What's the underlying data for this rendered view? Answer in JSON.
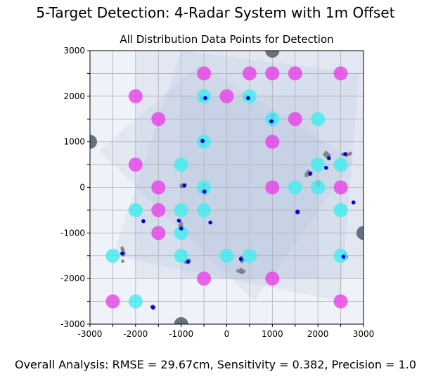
{
  "figure_title": "5-Target Detection: 4-Radar System with 1m Offset",
  "footer": "Overall Analysis: RMSE = 29.67cm, Sensitivity = 0.382, Precision = 1.0",
  "colors": {
    "background": "#ffffff",
    "coverage_fill": "#b0c0dc",
    "grid": "#b0b0b0",
    "radar": "#5f6b78",
    "magenta": "#e840e8",
    "cyan": "#40eef0",
    "detection_cloud": "#808080",
    "detection_center": "#0000e0"
  },
  "chart_data": {
    "type": "scatter",
    "title": "All Distribution Data Points for Detection",
    "xlabel": "",
    "ylabel": "",
    "xlim": [
      -3000,
      3000
    ],
    "ylim": [
      -3000,
      3000
    ],
    "grid": true,
    "x_ticks": [
      -3000,
      -2500,
      -2000,
      -1500,
      -1000,
      -500,
      0,
      500,
      1000,
      1500,
      2000,
      2500,
      3000
    ],
    "y_ticks": [
      -3000,
      -2500,
      -2000,
      -1500,
      -1000,
      -500,
      0,
      500,
      1000,
      1500,
      2000,
      2500,
      3000
    ],
    "x_tick_labels": [
      "-3000",
      "",
      "-2000",
      "",
      "-1000",
      "",
      "0",
      "",
      "1000",
      "",
      "2000",
      "",
      "3000"
    ],
    "y_tick_labels": [
      "-3000",
      "",
      "-2000",
      "",
      "-1000",
      "",
      "0",
      "",
      "1000",
      "",
      "2000",
      "",
      "3000"
    ],
    "coverage_regions": [
      [
        [
          -3000,
          3000
        ],
        [
          3000,
          3000
        ],
        [
          3000,
          -3000
        ],
        [
          -3000,
          -3000
        ]
      ],
      [
        [
          -2000,
          3000
        ],
        [
          3000,
          3000
        ],
        [
          3000,
          -2000
        ],
        [
          -2000,
          -2000
        ]
      ],
      [
        [
          -1000,
          3000
        ],
        [
          2900,
          2500
        ],
        [
          2500,
          -2500
        ],
        [
          -2500,
          -1500
        ]
      ],
      [
        [
          -2800,
          800
        ],
        [
          -600,
          2700
        ],
        [
          2800,
          600
        ],
        [
          600,
          -2500
        ]
      ],
      [
        [
          -1000,
          2000
        ],
        [
          2000,
          2000
        ],
        [
          2000,
          -2000
        ],
        [
          -1000,
          -2000
        ]
      ]
    ],
    "radars": [
      {
        "x": 1000,
        "y": 3000
      },
      {
        "x": -3000,
        "y": 1000
      },
      {
        "x": 3000,
        "y": -1000
      },
      {
        "x": -1000,
        "y": -3000
      }
    ],
    "magenta_points": [
      {
        "x": -500,
        "y": 2500
      },
      {
        "x": 500,
        "y": 2500
      },
      {
        "x": 1000,
        "y": 2500
      },
      {
        "x": 1500,
        "y": 2500
      },
      {
        "x": 2500,
        "y": 2500
      },
      {
        "x": -2000,
        "y": 2000
      },
      {
        "x": 0,
        "y": 2000
      },
      {
        "x": -1500,
        "y": 1500
      },
      {
        "x": 1500,
        "y": 1500
      },
      {
        "x": 1000,
        "y": 1000
      },
      {
        "x": -2000,
        "y": 500
      },
      {
        "x": -1500,
        "y": 0
      },
      {
        "x": 1000,
        "y": 0
      },
      {
        "x": 2500,
        "y": 0
      },
      {
        "x": -1500,
        "y": -500
      },
      {
        "x": -1500,
        "y": -1000
      },
      {
        "x": -500,
        "y": -2000
      },
      {
        "x": 1000,
        "y": -2000
      },
      {
        "x": -2500,
        "y": -2500
      },
      {
        "x": 2500,
        "y": -2500
      }
    ],
    "cyan_points": [
      {
        "x": -500,
        "y": 2000
      },
      {
        "x": 500,
        "y": 2000
      },
      {
        "x": 1000,
        "y": 1500
      },
      {
        "x": 2000,
        "y": 1500
      },
      {
        "x": -500,
        "y": 1000
      },
      {
        "x": -1000,
        "y": 500
      },
      {
        "x": 2000,
        "y": 500
      },
      {
        "x": 2500,
        "y": 500
      },
      {
        "x": -500,
        "y": 0
      },
      {
        "x": 1500,
        "y": 0
      },
      {
        "x": 2000,
        "y": 0
      },
      {
        "x": -2000,
        "y": -500
      },
      {
        "x": -1000,
        "y": -500
      },
      {
        "x": -500,
        "y": -500
      },
      {
        "x": 2500,
        "y": -500
      },
      {
        "x": -1000,
        "y": -1000
      },
      {
        "x": -2500,
        "y": -1500
      },
      {
        "x": -1000,
        "y": -1500
      },
      {
        "x": 0,
        "y": -1500
      },
      {
        "x": 500,
        "y": -1500
      },
      {
        "x": 2500,
        "y": -1500
      },
      {
        "x": -2000,
        "y": -2500
      }
    ],
    "detection_clouds": [
      {
        "x": -520,
        "y": 1960,
        "spread_x": 30,
        "spread_y": 10
      },
      {
        "x": 450,
        "y": 1970,
        "spread_x": 40,
        "spread_y": 20
      },
      {
        "x": 990,
        "y": 1450,
        "spread_x": 30,
        "spread_y": 40
      },
      {
        "x": 1010,
        "y": 1560,
        "spread_x": 20,
        "spread_y": 20
      },
      {
        "x": -540,
        "y": 1010,
        "spread_x": 40,
        "spread_y": 30
      },
      {
        "x": -500,
        "y": -80,
        "spread_x": 30,
        "spread_y": 90
      },
      {
        "x": -950,
        "y": 40,
        "spread_x": 60,
        "spread_y": 20
      },
      {
        "x": -1000,
        "y": -860,
        "spread_x": 30,
        "spread_y": 50
      },
      {
        "x": -2280,
        "y": -1430,
        "spread_x": 20,
        "spread_y": 140
      },
      {
        "x": -870,
        "y": -1620,
        "spread_x": 60,
        "spread_y": 20
      },
      {
        "x": 330,
        "y": -1580,
        "spread_x": 30,
        "spread_y": 30
      },
      {
        "x": 310,
        "y": -1840,
        "spread_x": 50,
        "spread_y": 30
      },
      {
        "x": 1800,
        "y": 300,
        "spread_x": 60,
        "spread_y": 40
      },
      {
        "x": 2000,
        "y": 80,
        "spread_x": 30,
        "spread_y": 30
      },
      {
        "x": 2200,
        "y": 720,
        "spread_x": 40,
        "spread_y": 40
      },
      {
        "x": 2620,
        "y": 730,
        "spread_x": 90,
        "spread_y": 20
      },
      {
        "x": 2600,
        "y": -1520,
        "spread_x": 40,
        "spread_y": 30
      },
      {
        "x": -1620,
        "y": -2630,
        "spread_x": 20,
        "spread_y": 20
      },
      {
        "x": 1560,
        "y": -540,
        "spread_x": 20,
        "spread_y": 20
      }
    ],
    "detections": [
      {
        "x": -470,
        "y": 1960
      },
      {
        "x": 470,
        "y": 1960
      },
      {
        "x": 980,
        "y": 1450
      },
      {
        "x": -530,
        "y": 1020
      },
      {
        "x": -490,
        "y": -90
      },
      {
        "x": -930,
        "y": 40
      },
      {
        "x": -1000,
        "y": -900
      },
      {
        "x": -1050,
        "y": -730
      },
      {
        "x": -2290,
        "y": -1450
      },
      {
        "x": -1830,
        "y": -740
      },
      {
        "x": -360,
        "y": -770
      },
      {
        "x": -850,
        "y": -1630
      },
      {
        "x": 310,
        "y": -1570
      },
      {
        "x": 1830,
        "y": 300
      },
      {
        "x": 2180,
        "y": 430
      },
      {
        "x": 2240,
        "y": 640
      },
      {
        "x": 2600,
        "y": 730
      },
      {
        "x": 2780,
        "y": -330
      },
      {
        "x": 2560,
        "y": -1520
      },
      {
        "x": -1620,
        "y": -2630
      },
      {
        "x": 1550,
        "y": -540
      }
    ]
  }
}
